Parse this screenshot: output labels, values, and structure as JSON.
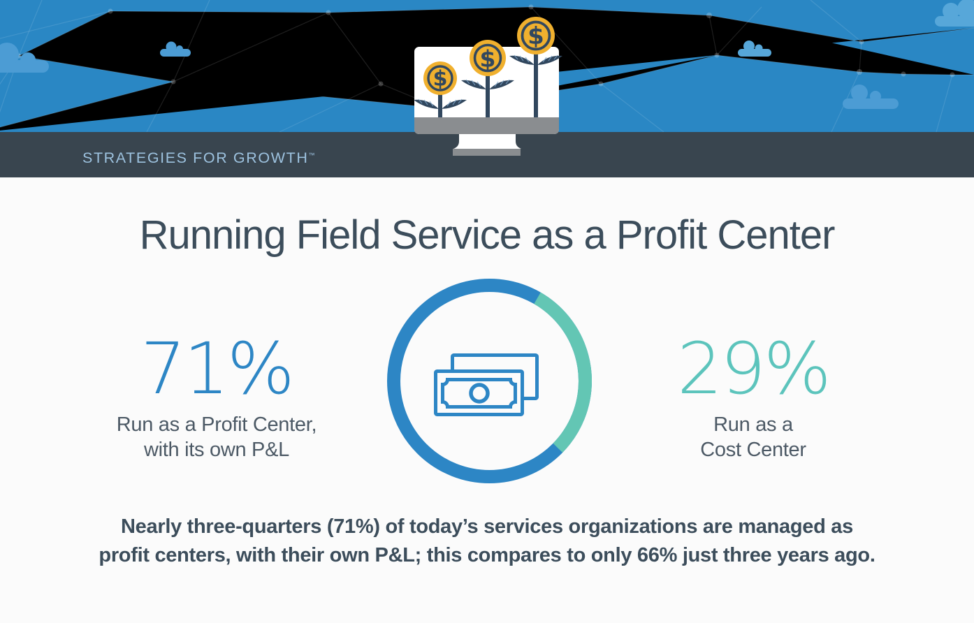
{
  "brand": {
    "name": "STRATEGIES FOR GROWTH",
    "trademark": "™"
  },
  "title": "Running Field Service as a Profit Center",
  "stats": {
    "left": {
      "value": "71%",
      "label_line1": "Run as a Profit Center,",
      "label_line2": "with its own P&L"
    },
    "right": {
      "value": "29%",
      "label_line1": "Run as a",
      "label_line2": "Cost Center"
    }
  },
  "summary": {
    "line1": "Nearly three-quarters (71%) of today’s services organizations are managed as",
    "line2": "profit centers, with their own P&L; this compares to only 66% just three years ago."
  },
  "chart_data": {
    "type": "pie",
    "subtype": "donut",
    "title": "Field service organizations: profit center vs cost center",
    "categories": [
      "Run as a Profit Center, with its own P&L",
      "Run as a Cost Center"
    ],
    "values": [
      71,
      29
    ],
    "unit": "%",
    "colors": [
      "#2D86C5",
      "#63C6B4"
    ],
    "start_angle_deg": 30,
    "center_icon": "banknote-icon",
    "legend_position": "flanking"
  },
  "icons": {
    "coin_symbol": "$",
    "banknote": "banknote-icon",
    "money_plant": "money-plant-icon",
    "cloud": "cloud-shape"
  },
  "colors": {
    "header_blue": "#2A87C4",
    "navbar": "#39454F",
    "brand_text": "#9DC2DF",
    "title_text": "#3C4D5B",
    "accent_blue": "#2D86C5",
    "accent_teal": "#5CC4BC",
    "label_gray": "#4C5965",
    "coin_gold": "#F0B02E",
    "plant_navy": "#31475E",
    "monitor_gray": "#8A8D90",
    "background": "#FBFBFB"
  }
}
